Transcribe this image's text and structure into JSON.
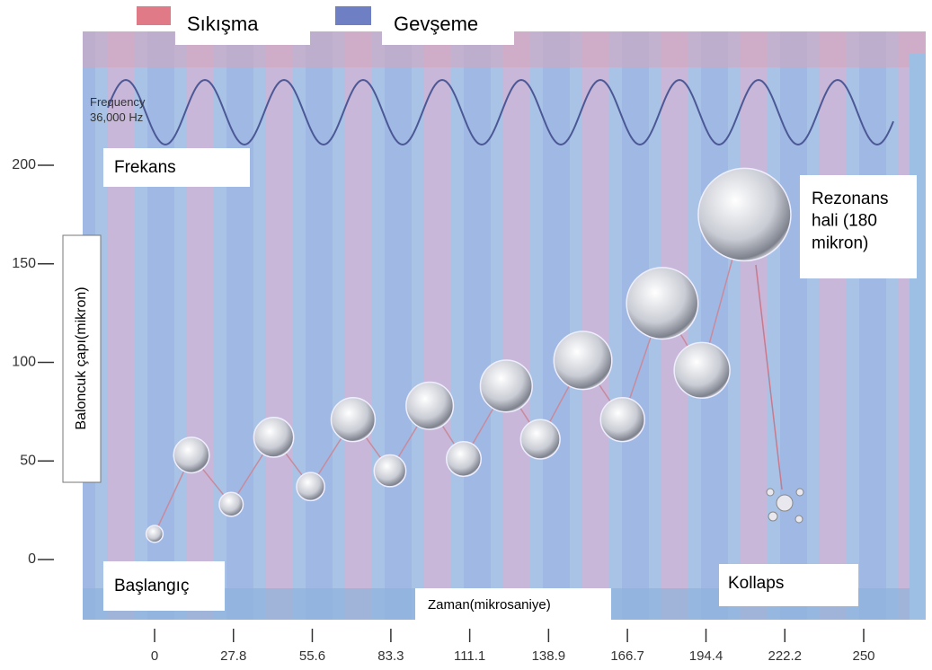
{
  "chart_data": {
    "type": "scatter",
    "legend": [
      {
        "name": "Sıkışma",
        "color": "#e07a86"
      },
      {
        "name": "Gevşeme",
        "color": "#6f7fc4"
      }
    ],
    "frequency_label": "Frequency\n36,000 Hz",
    "annotations": {
      "frequency": "Frekans",
      "resonance": "Rezonans hali (180 mikron)",
      "start": "Başlangıç",
      "collapse": "Kollaps"
    },
    "xlabel": "Zaman(mikrosaniye)",
    "ylabel": "Baloncuk çapı(mikron)",
    "x": [
      0,
      13,
      27,
      42,
      55,
      70,
      83,
      97,
      109,
      124,
      136,
      151,
      165,
      179,
      193,
      208
    ],
    "series": [
      {
        "color": "#c98a9c",
        "values": [
          13,
          53,
          28,
          62,
          37,
          71,
          45,
          78,
          51,
          88,
          61,
          101,
          71,
          130,
          96,
          175
        ]
      }
    ],
    "xlim": [
      0,
      250
    ],
    "xticks": [
      0,
      27.8,
      55.6,
      83.3,
      111.1,
      138.9,
      166.7,
      194.4,
      222.2,
      250
    ],
    "ylim": [
      0,
      200
    ],
    "yticks": [
      0,
      50,
      100,
      150,
      200
    ]
  }
}
